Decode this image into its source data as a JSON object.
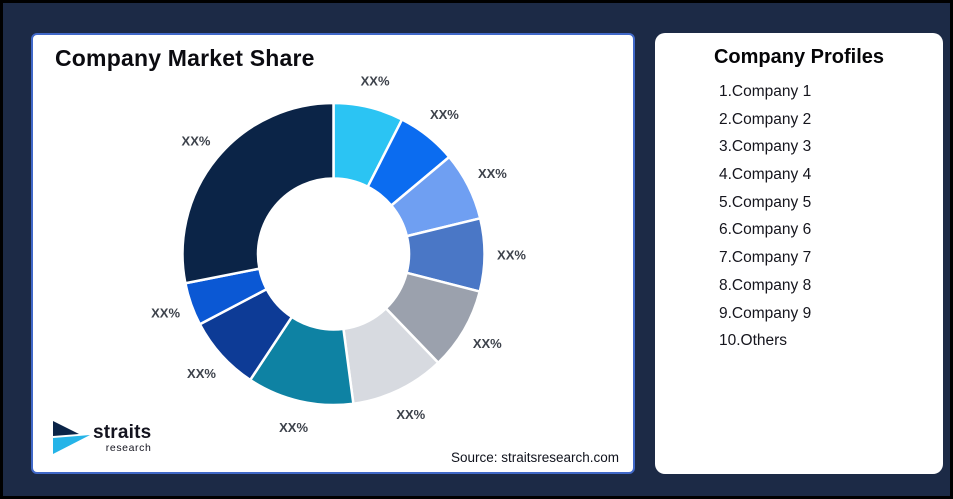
{
  "frame": {
    "background": "#1c2a46",
    "border_color": "#000000"
  },
  "chart_card": {
    "title": "Company Market Share",
    "source": "Source: straitsresearch.com",
    "border_color": "#4068c8",
    "logo": {
      "wordmark": "straits",
      "subtext": "research",
      "arrow_dark_color": "#0b2447",
      "arrow_cyan_color": "#25b4e8"
    }
  },
  "profiles_card": {
    "title": "Company Profiles",
    "items": [
      "1.Company 1",
      "2.Company 2",
      "3.Company 3",
      "4.Company 4",
      "5.Company 5",
      "6.Company 6",
      "7.Company 7",
      "8.Company 8",
      "9.Company 9",
      "10.Others"
    ]
  },
  "chart_data": {
    "type": "pie",
    "title": "Company Market Share",
    "donut": true,
    "donut_hole_ratio": 0.5,
    "start_angle_deg": 0,
    "direction": "clockwise",
    "slice_label_text": "XX%",
    "label_color": "#3d424b",
    "slice_stroke_color": "#ffffff",
    "segments": [
      {
        "name": "Company 1",
        "label": "XX%",
        "share_pct_est": 7.5,
        "color": "#2bc4f3"
      },
      {
        "name": "Company 2",
        "label": "XX%",
        "share_pct_est": 6.4,
        "color": "#0b6cf0"
      },
      {
        "name": "Company 3",
        "label": "XX%",
        "share_pct_est": 7.3,
        "color": "#6f9ff2"
      },
      {
        "name": "Company 4",
        "label": "XX%",
        "share_pct_est": 7.8,
        "color": "#4a77c6"
      },
      {
        "name": "Company 5",
        "label": "XX%",
        "share_pct_est": 8.8,
        "color": "#9ba1ad"
      },
      {
        "name": "Company 6",
        "label": "XX%",
        "share_pct_est": 10.1,
        "color": "#d7dae0"
      },
      {
        "name": "Company 7",
        "label": "XX%",
        "share_pct_est": 11.4,
        "color": "#0e82a3"
      },
      {
        "name": "Company 8",
        "label": "XX%",
        "share_pct_est": 8.0,
        "color": "#0d3b96"
      },
      {
        "name": "Company 9",
        "label": "XX%",
        "share_pct_est": 4.6,
        "color": "#0b58d4"
      },
      {
        "name": "Others",
        "label": "XX%",
        "share_pct_est": 28.1,
        "color": "#0b2447"
      }
    ]
  }
}
